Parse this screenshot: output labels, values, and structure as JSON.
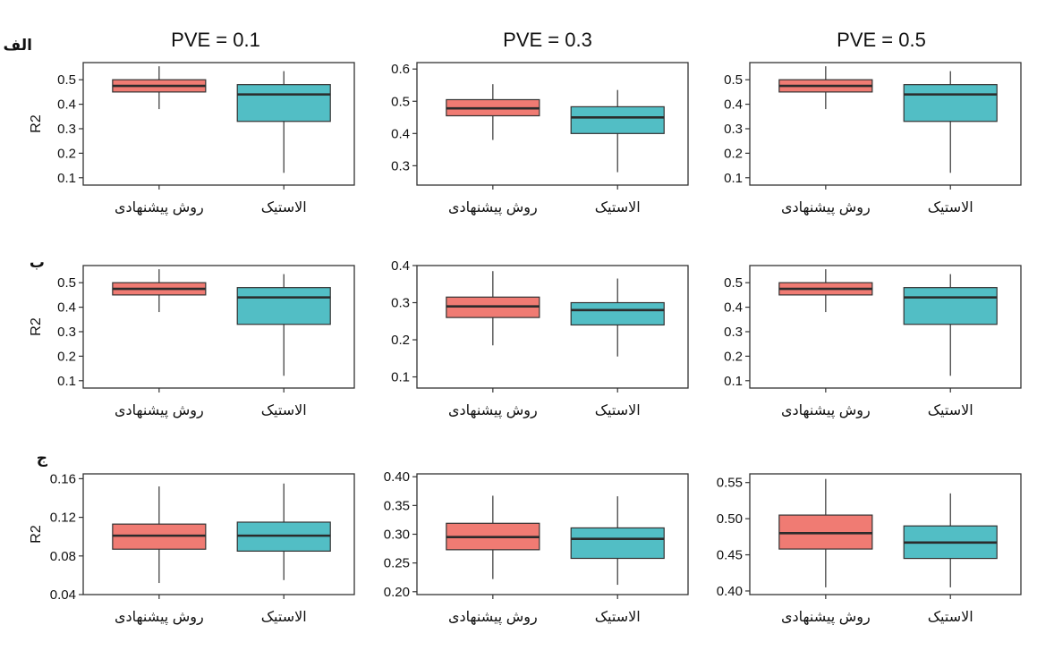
{
  "colors": {
    "series1": "#F07B73",
    "series2": "#52BEC5",
    "median": "#2b2b2b",
    "frame": "#333333"
  },
  "column_headers": [
    "PVE = 0.1",
    "PVE = 0.3",
    "PVE = 0.5"
  ],
  "row_labels": [
    "الف",
    "ب",
    "ج"
  ],
  "y_axis_label": "R2",
  "chart_data": [
    {
      "type": "box",
      "row": 0,
      "col": 0,
      "categories": [
        "روش پیشنهادی",
        "الاستیک"
      ],
      "ylabel": "R2",
      "yticks": [
        0.1,
        0.2,
        0.3,
        0.4,
        0.5
      ],
      "ylim": [
        0.07,
        0.57
      ],
      "boxes": [
        {
          "min": 0.38,
          "q1": 0.45,
          "median": 0.475,
          "q3": 0.5,
          "max": 0.555
        },
        {
          "min": 0.12,
          "q1": 0.33,
          "median": 0.44,
          "q3": 0.48,
          "max": 0.535
        }
      ]
    },
    {
      "type": "box",
      "row": 0,
      "col": 1,
      "title": "PVE = 0.1",
      "categories": [
        "روش پیشنهادی",
        "الاستیک"
      ],
      "yticks": [
        0.3,
        0.4,
        0.5,
        0.6
      ],
      "ylim": [
        0.24,
        0.62
      ],
      "boxes": [
        {
          "min": 0.38,
          "q1": 0.455,
          "median": 0.478,
          "q3": 0.505,
          "max": 0.553
        },
        {
          "min": 0.28,
          "q1": 0.4,
          "median": 0.45,
          "q3": 0.483,
          "max": 0.535
        }
      ]
    },
    {
      "type": "box",
      "row": 0,
      "col": 2,
      "title": "PVE = 0.3",
      "categories": [
        "روش پیشنهادی",
        "الاستیک"
      ],
      "yticks": [
        0.1,
        0.2,
        0.3,
        0.4,
        0.5
      ],
      "ylim": [
        0.07,
        0.57
      ],
      "boxes": [
        {
          "min": 0.38,
          "q1": 0.45,
          "median": 0.475,
          "q3": 0.5,
          "max": 0.555
        },
        {
          "min": 0.12,
          "q1": 0.33,
          "median": 0.44,
          "q3": 0.48,
          "max": 0.535
        }
      ]
    },
    {
      "type": "box",
      "row": 1,
      "col": 0,
      "title": "PVE = 0.5",
      "categories": [
        "روش پیشنهادی",
        "الاستیک"
      ],
      "ylabel": "R2",
      "yticks": [
        0.1,
        0.2,
        0.3,
        0.4,
        0.5
      ],
      "ylim": [
        0.07,
        0.57
      ],
      "boxes": [
        {
          "min": 0.38,
          "q1": 0.45,
          "median": 0.475,
          "q3": 0.5,
          "max": 0.555
        },
        {
          "min": 0.12,
          "q1": 0.33,
          "median": 0.44,
          "q3": 0.48,
          "max": 0.535
        }
      ]
    },
    {
      "type": "box",
      "row": 1,
      "col": 1,
      "categories": [
        "روش پیشنهادی",
        "الاستیک"
      ],
      "yticks": [
        0.1,
        0.2,
        0.3,
        0.4
      ],
      "ylim": [
        0.07,
        0.4
      ],
      "boxes": [
        {
          "min": 0.185,
          "q1": 0.26,
          "median": 0.29,
          "q3": 0.315,
          "max": 0.385
        },
        {
          "min": 0.155,
          "q1": 0.24,
          "median": 0.28,
          "q3": 0.3,
          "max": 0.365
        }
      ]
    },
    {
      "type": "box",
      "row": 1,
      "col": 2,
      "categories": [
        "روش پیشنهادی",
        "الاستیک"
      ],
      "yticks": [
        0.1,
        0.2,
        0.3,
        0.4,
        0.5
      ],
      "ylim": [
        0.07,
        0.57
      ],
      "boxes": [
        {
          "min": 0.38,
          "q1": 0.45,
          "median": 0.475,
          "q3": 0.5,
          "max": 0.555
        },
        {
          "min": 0.12,
          "q1": 0.33,
          "median": 0.44,
          "q3": 0.48,
          "max": 0.535
        }
      ]
    },
    {
      "type": "box",
      "row": 2,
      "col": 0,
      "categories": [
        "روش پیشنهادی",
        "الاستیک"
      ],
      "ylabel": "R2",
      "yticks": [
        0.04,
        0.08,
        0.12,
        0.16
      ],
      "ylim": [
        0.04,
        0.165
      ],
      "boxes": [
        {
          "min": 0.052,
          "q1": 0.087,
          "median": 0.101,
          "q3": 0.113,
          "max": 0.152
        },
        {
          "min": 0.055,
          "q1": 0.085,
          "median": 0.101,
          "q3": 0.115,
          "max": 0.155
        }
      ]
    },
    {
      "type": "box",
      "row": 2,
      "col": 1,
      "categories": [
        "روش پیشنهادی",
        "الاستیک"
      ],
      "yticks": [
        0.2,
        0.25,
        0.3,
        0.35,
        0.4
      ],
      "ylim": [
        0.195,
        0.405
      ],
      "boxes": [
        {
          "min": 0.222,
          "q1": 0.273,
          "median": 0.295,
          "q3": 0.319,
          "max": 0.367
        },
        {
          "min": 0.212,
          "q1": 0.258,
          "median": 0.292,
          "q3": 0.311,
          "max": 0.366
        }
      ]
    },
    {
      "type": "box",
      "row": 2,
      "col": 2,
      "categories": [
        "روش پیشنهادی",
        "الاستیک"
      ],
      "yticks": [
        0.4,
        0.45,
        0.5,
        0.55
      ],
      "ylim": [
        0.395,
        0.562
      ],
      "boxes": [
        {
          "min": 0.405,
          "q1": 0.458,
          "median": 0.48,
          "q3": 0.505,
          "max": 0.555
        },
        {
          "min": 0.405,
          "q1": 0.445,
          "median": 0.467,
          "q3": 0.49,
          "max": 0.535
        }
      ]
    }
  ]
}
